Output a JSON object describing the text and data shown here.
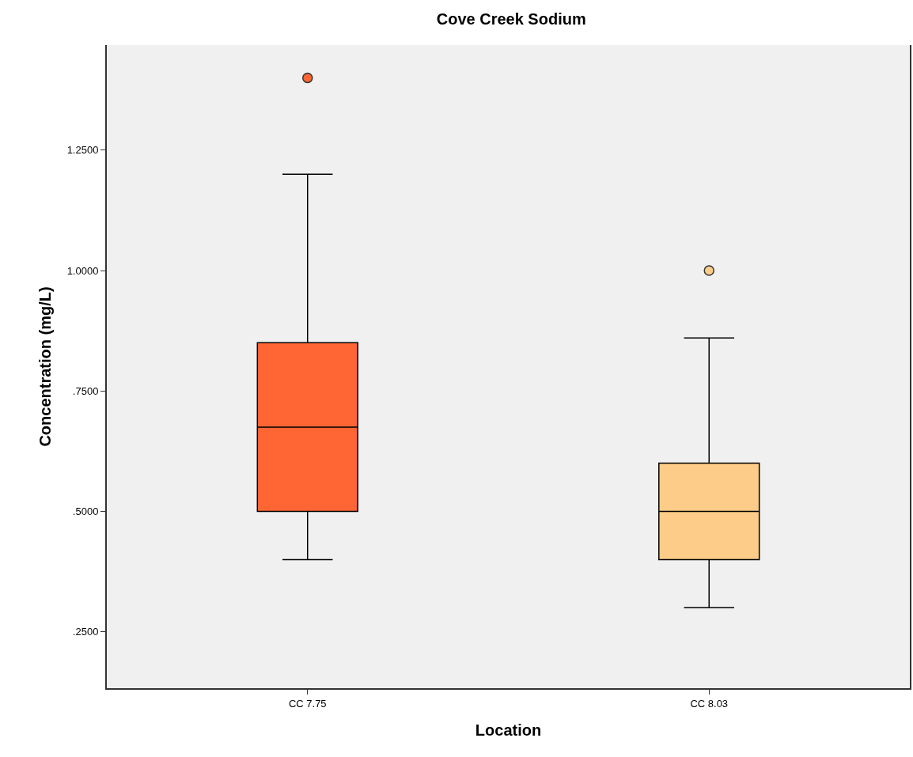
{
  "chart_data": {
    "type": "box",
    "title": "Cove Creek Sodium",
    "xlabel": "Location",
    "ylabel": "Concentration (mg/L)",
    "categories": [
      "CC 7.75",
      "CC 8.03"
    ],
    "boxes": [
      {
        "low": 0.4,
        "q1": 0.5,
        "median": 0.675,
        "q3": 0.85,
        "high": 1.2,
        "outliers": [
          1.4
        ]
      },
      {
        "low": 0.3,
        "q1": 0.4,
        "median": 0.5,
        "q3": 0.6,
        "high": 0.86,
        "outliers": [
          1.0
        ]
      }
    ],
    "colors": [
      "#ff6633",
      "#fccc88"
    ],
    "ylim": [
      0.133,
      1.468
    ],
    "yticks": [
      {
        "value": 0.25,
        "label": ".2500"
      },
      {
        "value": 0.5,
        "label": ".5000"
      },
      {
        "value": 0.75,
        "label": ".7500"
      },
      {
        "value": 1.0,
        "label": "1.0000"
      },
      {
        "value": 1.25,
        "label": "1.2500"
      }
    ],
    "grid": false
  }
}
